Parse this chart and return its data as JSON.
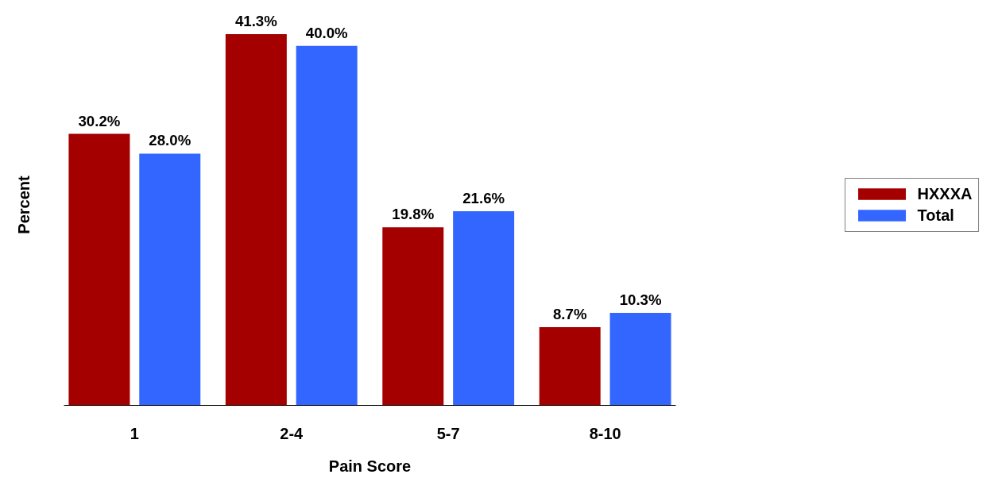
{
  "chart_data": {
    "type": "bar",
    "xlabel": "Pain Score",
    "ylabel": "Percent",
    "categories": [
      "1",
      "2-4",
      "5-7",
      "8-10"
    ],
    "series": [
      {
        "name": "HXXXA",
        "color": "#a50000",
        "values": [
          30.2,
          41.3,
          19.8,
          8.7
        ],
        "value_labels": [
          "30.2%",
          "41.3%",
          "19.8%",
          "8.7%"
        ]
      },
      {
        "name": "Total",
        "color": "#3366ff",
        "values": [
          28.0,
          40.0,
          21.6,
          10.3
        ],
        "value_labels": [
          "28.0%",
          "40.0%",
          "21.6%",
          "10.3%"
        ]
      }
    ],
    "tick_labels": "x",
    "grid": false,
    "legend": "right"
  }
}
